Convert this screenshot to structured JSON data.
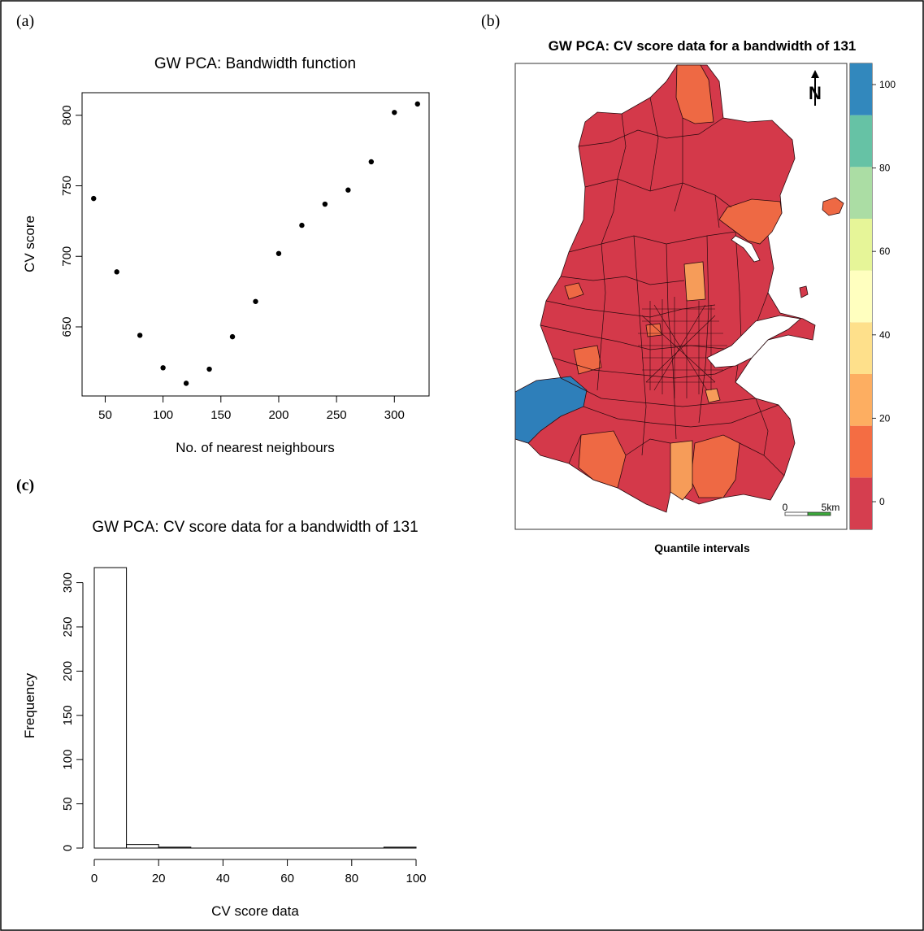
{
  "panels": {
    "a_label": "(a)",
    "b_label": "(b)",
    "c_label": "(c)"
  },
  "colors": {
    "map_red": "#d4394a",
    "map_orange": "#ee6944",
    "map_light_orange": "#f69c59",
    "map_blue": "#2e7fba",
    "axis": "#000000"
  },
  "map": {
    "title": "GW PCA: CV score data for a bandwidth of 131",
    "caption": "Quantile intervals",
    "north_label": "N",
    "scalebar_start": "0",
    "scalebar_end": "5km",
    "legend_ticks": [
      "0",
      "20",
      "40",
      "60",
      "80",
      "100"
    ],
    "legend_colors": [
      "#d53e4f",
      "#f46d43",
      "#fdae61",
      "#fee08b",
      "#ffffbf",
      "#e6f598",
      "#abdda4",
      "#66c2a5",
      "#3288bd"
    ]
  },
  "chart_data": [
    {
      "type": "scatter",
      "title": "GW PCA: Bandwidth function",
      "xlabel": "No. of nearest neighbours",
      "ylabel": "CV score",
      "x": [
        40,
        60,
        80,
        100,
        120,
        140,
        160,
        180,
        200,
        220,
        240,
        260,
        280,
        300,
        320
      ],
      "y": [
        741,
        689,
        644,
        621,
        610,
        620,
        643,
        668,
        702,
        722,
        737,
        747,
        767,
        802,
        808
      ],
      "xticks": [
        50,
        100,
        150,
        200,
        250,
        300
      ],
      "yticks": [
        650,
        700,
        750,
        800
      ],
      "xlim": [
        30,
        330
      ],
      "ylim": [
        601,
        816
      ],
      "grid": false
    },
    {
      "type": "bar",
      "title": "GW PCA: CV score data for a bandwidth of 131",
      "xlabel": "CV score data",
      "ylabel": "Frequency",
      "bins": [
        [
          0,
          10
        ],
        [
          10,
          20
        ],
        [
          20,
          30
        ],
        [
          30,
          40
        ],
        [
          40,
          50
        ],
        [
          50,
          60
        ],
        [
          60,
          70
        ],
        [
          70,
          80
        ],
        [
          80,
          90
        ],
        [
          90,
          100
        ]
      ],
      "values": [
        317,
        4,
        1,
        0,
        0,
        0,
        0,
        0,
        0,
        1
      ],
      "xticks": [
        0,
        20,
        40,
        60,
        80,
        100
      ],
      "yticks": [
        0,
        50,
        100,
        150,
        200,
        250,
        300
      ],
      "xlim": [
        0,
        100
      ],
      "ylim": [
        0,
        318
      ],
      "grid": false
    }
  ]
}
